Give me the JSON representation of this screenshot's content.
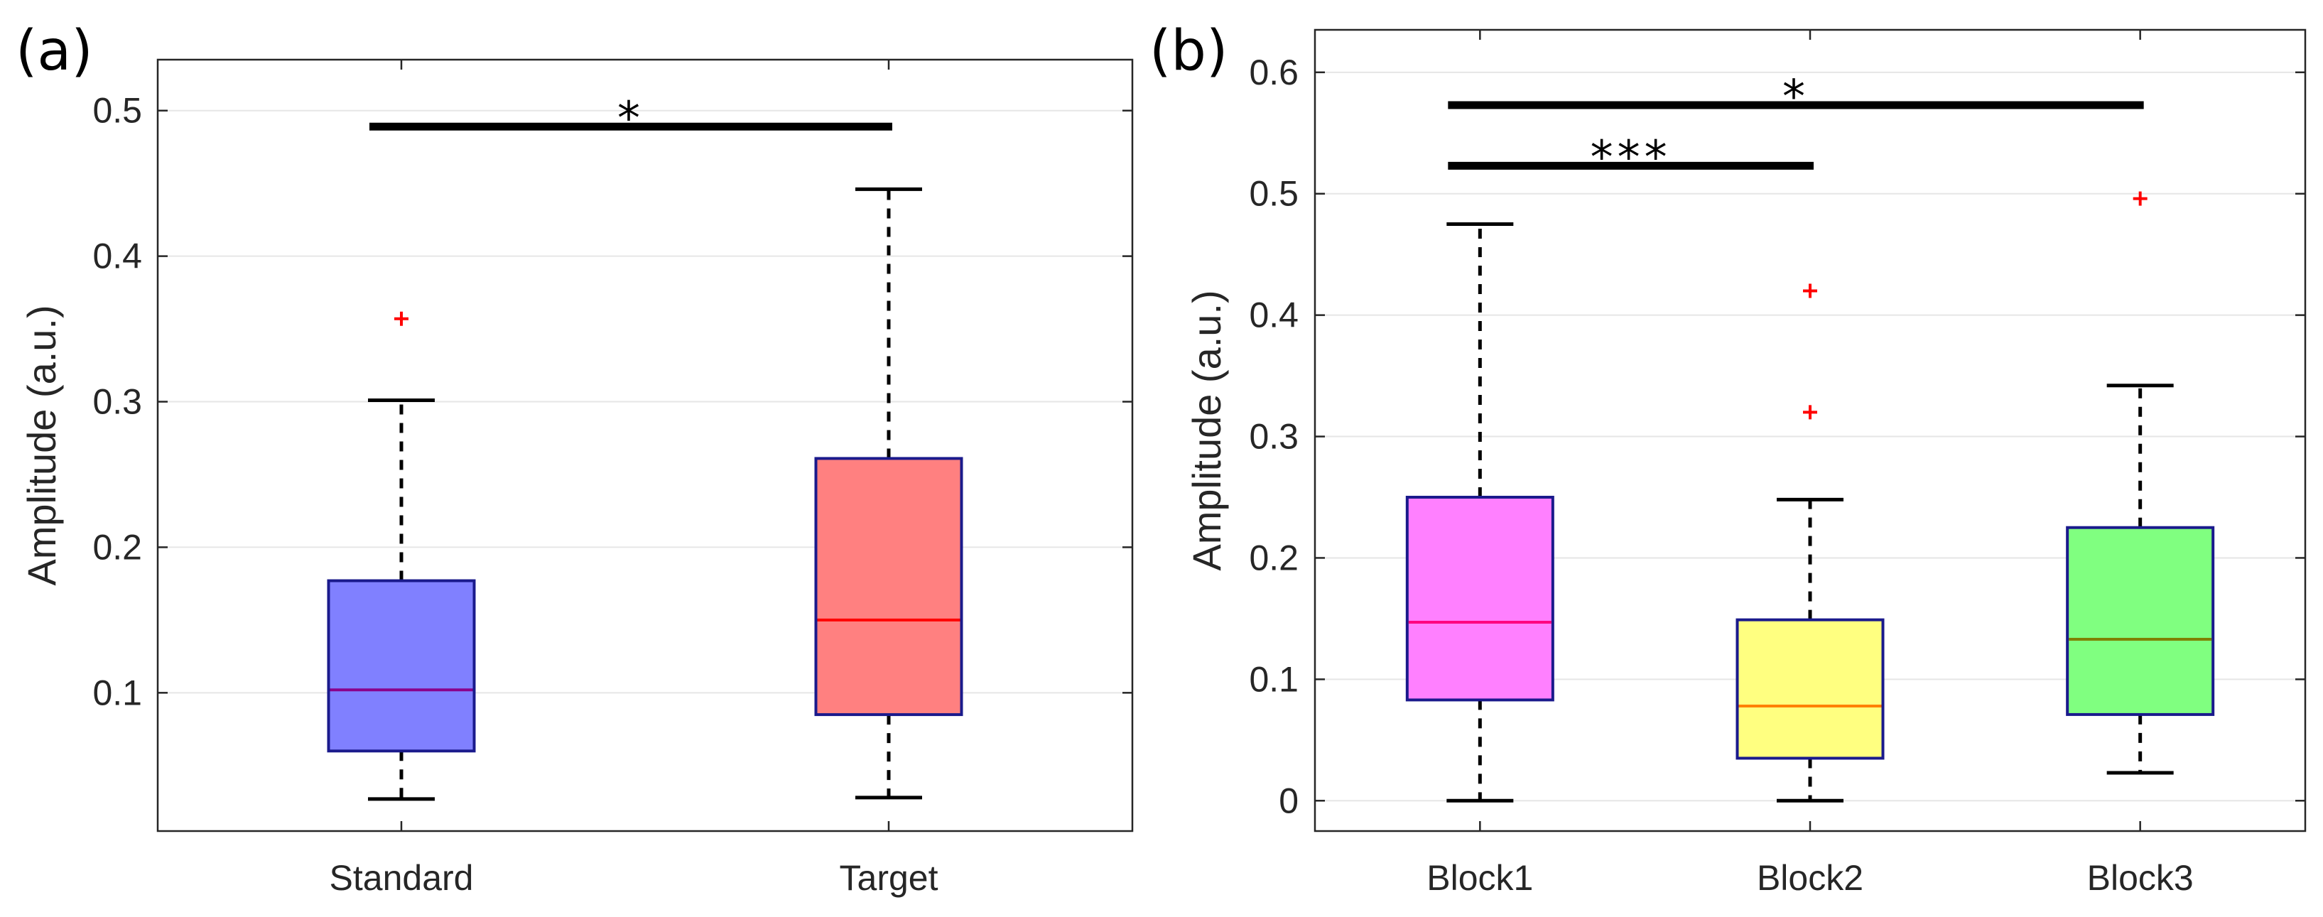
{
  "chart_data": [
    {
      "type": "boxplot",
      "panel_label": "(a)",
      "title": "",
      "xlabel": "",
      "ylabel": "Amplitude (a.u.)",
      "ylim": [
        0.005,
        0.535
      ],
      "yticks": [
        0.1,
        0.2,
        0.3,
        0.4,
        0.5
      ],
      "yticklabels": [
        "0.1",
        "0.2",
        "0.3",
        "0.4",
        "0.5"
      ],
      "categories": [
        "Standard",
        "Target"
      ],
      "series": [
        {
          "name": "Standard",
          "color": "#8080ff",
          "median_color": "#8b008b",
          "whisker_low": 0.027,
          "q1": 0.06,
          "median": 0.102,
          "q3": 0.177,
          "whisker_high": 0.301,
          "outliers": [
            0.357
          ]
        },
        {
          "name": "Target",
          "color": "#ff8080",
          "median_color": "#ff0000",
          "whisker_low": 0.028,
          "q1": 0.085,
          "median": 0.15,
          "q3": 0.261,
          "whisker_high": 0.446,
          "outliers": []
        }
      ],
      "significance": [
        {
          "from": 0,
          "to": 1,
          "y": 0.489,
          "label": "*"
        }
      ]
    },
    {
      "type": "boxplot",
      "panel_label": "(b)",
      "title": "",
      "xlabel": "",
      "ylabel": "Amplitude (a.u.)",
      "ylim": [
        -0.025,
        0.635
      ],
      "yticks": [
        0,
        0.1,
        0.2,
        0.3,
        0.4,
        0.5,
        0.6
      ],
      "yticklabels": [
        "0",
        "0.1",
        "0.2",
        "0.3",
        "0.4",
        "0.5",
        "0.6"
      ],
      "categories": [
        "Block1",
        "Block2",
        "Block3"
      ],
      "series": [
        {
          "name": "Block1",
          "color": "#ff80ff",
          "median_color": "#ff0080",
          "whisker_low": 0.0,
          "q1": 0.083,
          "median": 0.147,
          "q3": 0.25,
          "whisker_high": 0.475,
          "outliers": []
        },
        {
          "name": "Block2",
          "color": "#ffff80",
          "median_color": "#ff8000",
          "whisker_low": 0.0,
          "q1": 0.035,
          "median": 0.078,
          "q3": 0.149,
          "whisker_high": 0.248,
          "outliers": [
            0.32,
            0.42
          ]
        },
        {
          "name": "Block3",
          "color": "#80ff80",
          "median_color": "#808000",
          "whisker_low": 0.023,
          "q1": 0.071,
          "median": 0.133,
          "q3": 0.225,
          "whisker_high": 0.342,
          "outliers": [
            0.496
          ]
        }
      ],
      "significance": [
        {
          "from": 0,
          "to": 1,
          "y": 0.523,
          "label": "***"
        },
        {
          "from": 0,
          "to": 2,
          "y": 0.573,
          "label": "*"
        }
      ]
    }
  ]
}
